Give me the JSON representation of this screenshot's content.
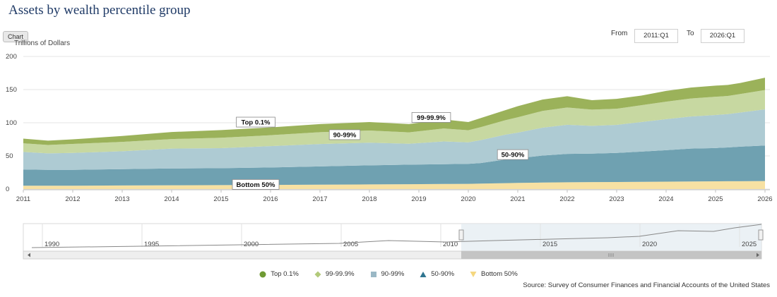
{
  "page": {
    "title": "Assets by wealth percentile group",
    "chart_button": "Chart",
    "from_label": "From",
    "from_value": "2011:Q1",
    "to_label": "To",
    "to_value": "2026:Q1",
    "source": "Source: Survey of Consumer Finances and Financial Accounts of the United States"
  },
  "navigator": {
    "years": [
      "1990",
      "1995",
      "2000",
      "2005",
      "2010",
      "2015",
      "2020",
      "2025"
    ]
  },
  "chart_data": {
    "type": "area",
    "stacked": true,
    "ylabel": "Trillions of Dollars",
    "ylim": [
      0,
      200
    ],
    "yticks": [
      0,
      50,
      100,
      150,
      200
    ],
    "xlim": [
      2011,
      2026.1
    ],
    "xticks": [
      "2011",
      "2012",
      "2013",
      "2014",
      "2015",
      "2016",
      "2017",
      "2018",
      "2019",
      "2020",
      "2021",
      "2022",
      "2023",
      "2024",
      "2025",
      "2026"
    ],
    "x": [
      2011,
      2011.5,
      2012,
      2013,
      2014,
      2015,
      2016,
      2017,
      2018,
      2018.8,
      2019.5,
      2020,
      2020.25,
      2020.75,
      2021,
      2021.5,
      2022,
      2022.5,
      2023,
      2023.5,
      2024,
      2024.5,
      2025,
      2025.25,
      2025.5,
      2026
    ],
    "series": [
      {
        "name": "Bottom 50%",
        "color": "#f7e1a3",
        "values": [
          5.0,
          5.0,
          5.1,
          5.4,
          5.7,
          6.0,
          6.3,
          6.7,
          7.0,
          7.3,
          7.7,
          7.9,
          8.2,
          8.9,
          9.3,
          9.8,
          10.2,
          10.5,
          10.7,
          10.9,
          11.2,
          11.5,
          11.7,
          11.8,
          11.9,
          12.1
        ]
      },
      {
        "name": "50-90%",
        "color": "#6fa1b1",
        "values": [
          24.5,
          24.0,
          23.9,
          24.6,
          25.4,
          25.5,
          26.3,
          27.5,
          28.8,
          29.6,
          29.8,
          30.1,
          31.0,
          35.7,
          37.2,
          40.7,
          42.8,
          43.0,
          43.8,
          45.6,
          47.5,
          49.5,
          50.2,
          51.0,
          52.1,
          53.6
        ]
      },
      {
        "name": "90-99%",
        "color": "#aecbd3",
        "values": [
          26.5,
          24.8,
          25.5,
          27.0,
          29.9,
          30.2,
          32.2,
          33.8,
          34.2,
          31.5,
          34.3,
          32.5,
          34.6,
          37.4,
          38.6,
          42.0,
          44.0,
          41.9,
          42.3,
          44.6,
          46.8,
          48.5,
          49.8,
          50.2,
          51.4,
          54.5
        ]
      },
      {
        "name": "99-99.9%",
        "color": "#c7d8a1",
        "values": [
          13.0,
          12.7,
          13.6,
          14.1,
          14.4,
          15.7,
          16.4,
          17.8,
          18.3,
          17.1,
          19.6,
          18.2,
          19.5,
          21.9,
          23.1,
          25.3,
          26.0,
          24.4,
          24.4,
          25.3,
          26.3,
          27.1,
          27.5,
          27.4,
          27.9,
          29.1
        ]
      },
      {
        "name": "Top 0.1%",
        "color": "#9bb25a",
        "values": [
          7.0,
          6.5,
          6.9,
          8.9,
          10.6,
          11.6,
          11.8,
          12.2,
          12.7,
          12.5,
          13.6,
          12.3,
          13.7,
          15.1,
          16.8,
          17.2,
          17.0,
          14.2,
          14.8,
          14.6,
          16.2,
          16.4,
          16.8,
          16.6,
          16.7,
          18.7
        ]
      }
    ],
    "annotations": [
      {
        "text": "Top 0.1%",
        "x": 2015.7,
        "y": 101
      },
      {
        "text": "99-99.9%",
        "x": 2019.25,
        "y": 108
      },
      {
        "text": "90-99%",
        "x": 2017.5,
        "y": 82
      },
      {
        "text": "50-90%",
        "x": 2020.9,
        "y": 52
      },
      {
        "text": "Bottom 50%",
        "x": 2015.7,
        "y": 7
      }
    ]
  },
  "legend": [
    {
      "label": "Top 0.1%",
      "color": "#6f9a33",
      "shape": "circle"
    },
    {
      "label": "99-99.9%",
      "color": "#b2ca7a",
      "shape": "diamond"
    },
    {
      "label": "90-99%",
      "color": "#9ab8c5",
      "shape": "square"
    },
    {
      "label": "50-90%",
      "color": "#2f7590",
      "shape": "triangle"
    },
    {
      "label": "Bottom 50%",
      "color": "#f5d77f",
      "shape": "triangle-down"
    }
  ]
}
